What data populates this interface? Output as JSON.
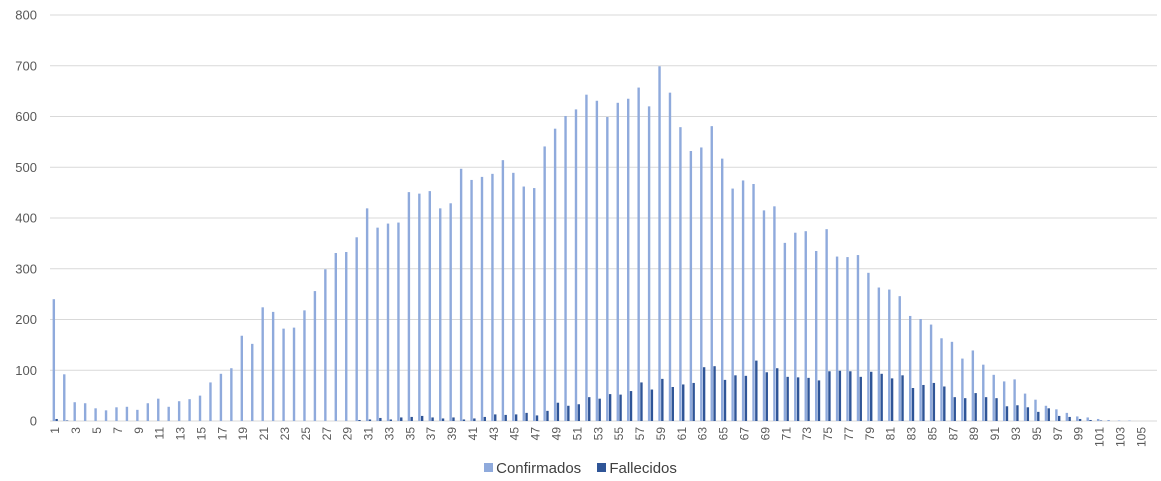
{
  "colors": {
    "confirmados": "#8faadc",
    "fallecidos": "#2f5597",
    "grid": "#d9d9d9",
    "text": "#595959"
  },
  "chart_data": {
    "type": "bar",
    "title": "",
    "xlabel": "",
    "ylabel": "",
    "ylim": [
      0,
      800
    ],
    "yticks": [
      0,
      100,
      200,
      300,
      400,
      500,
      600,
      700,
      800
    ],
    "grid": true,
    "legend_position": "bottom",
    "categories": [
      1,
      2,
      3,
      4,
      5,
      6,
      7,
      8,
      9,
      10,
      11,
      12,
      13,
      14,
      15,
      16,
      17,
      18,
      19,
      20,
      21,
      22,
      23,
      24,
      25,
      26,
      27,
      28,
      29,
      30,
      31,
      32,
      33,
      34,
      35,
      36,
      37,
      38,
      39,
      40,
      41,
      42,
      43,
      44,
      45,
      46,
      47,
      48,
      49,
      50,
      51,
      52,
      53,
      54,
      55,
      56,
      57,
      58,
      59,
      60,
      61,
      62,
      63,
      64,
      65,
      66,
      67,
      68,
      69,
      70,
      71,
      72,
      73,
      74,
      75,
      76,
      77,
      78,
      79,
      80,
      81,
      82,
      83,
      84,
      85,
      86,
      87,
      88,
      89,
      90,
      91,
      92,
      93,
      94,
      95,
      96,
      97,
      98,
      99,
      100,
      101,
      102,
      103,
      104,
      105,
      106
    ],
    "tick_labels": [
      1,
      3,
      5,
      7,
      9,
      11,
      13,
      15,
      17,
      19,
      21,
      23,
      25,
      27,
      29,
      31,
      33,
      35,
      37,
      39,
      41,
      43,
      45,
      47,
      49,
      51,
      53,
      55,
      57,
      59,
      61,
      63,
      65,
      67,
      69,
      71,
      73,
      75,
      77,
      79,
      81,
      83,
      85,
      87,
      89,
      91,
      93,
      95,
      97,
      99,
      101,
      103,
      105
    ],
    "series": [
      {
        "name": "Confirmados",
        "values": [
          240,
          92,
          37,
          35,
          25,
          21,
          27,
          28,
          22,
          35,
          44,
          28,
          39,
          43,
          50,
          76,
          93,
          104,
          168,
          152,
          224,
          215,
          182,
          184,
          218,
          256,
          299,
          331,
          333,
          362,
          419,
          381,
          389,
          391,
          451,
          448,
          453,
          419,
          429,
          497,
          475,
          481,
          487,
          514,
          489,
          462,
          459,
          541,
          576,
          601,
          614,
          643,
          631,
          599,
          627,
          635,
          657,
          620,
          699,
          647,
          579,
          532,
          539,
          581,
          517,
          458,
          474,
          467,
          415,
          423,
          351,
          371,
          374,
          335,
          378,
          324,
          323,
          327,
          292,
          263,
          259,
          246,
          207,
          201,
          190,
          163,
          156,
          123,
          139,
          111,
          91,
          78,
          82,
          54,
          42,
          30,
          23,
          16,
          9,
          7,
          4,
          2,
          1,
          1,
          0,
          0
        ]
      },
      {
        "name": "Fallecidos",
        "values": [
          4,
          1,
          0,
          0,
          0,
          0,
          0,
          0,
          0,
          0,
          0,
          0,
          0,
          0,
          0,
          0,
          0,
          0,
          0,
          0,
          0,
          0,
          0,
          0,
          0,
          0,
          0,
          0,
          0,
          2,
          3,
          6,
          3,
          7,
          8,
          10,
          7,
          5,
          7,
          3,
          5,
          8,
          13,
          12,
          13,
          16,
          11,
          20,
          36,
          30,
          33,
          47,
          44,
          53,
          52,
          59,
          76,
          62,
          83,
          67,
          72,
          75,
          106,
          108,
          81,
          90,
          89,
          119,
          96,
          104,
          87,
          86,
          85,
          80,
          98,
          99,
          98,
          87,
          97,
          93,
          84,
          90,
          65,
          71,
          75,
          68,
          47,
          45,
          55,
          47,
          45,
          29,
          31,
          27,
          18,
          25,
          10,
          8,
          4,
          2,
          1,
          0,
          0,
          0,
          0,
          0
        ]
      }
    ]
  }
}
